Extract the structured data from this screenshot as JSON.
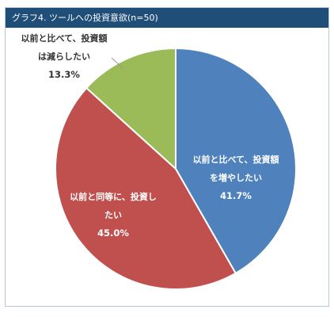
{
  "chart_data": {
    "type": "pie",
    "title": "グラフ4. ツールへの投資意欲(n=50)",
    "start_angle_deg": 0,
    "direction": "clockwise",
    "slices": [
      {
        "label_lines": [
          "以前と比べて、投資額",
          "を増やしたい"
        ],
        "value": 41.7,
        "value_label": "41.7%",
        "color": "#4f81bd",
        "label_color": "#ffffff"
      },
      {
        "label_lines": [
          "以前と同等に、投資し",
          "たい"
        ],
        "value": 45.0,
        "value_label": "45.0%",
        "color": "#c0504d",
        "label_color": "#ffffff"
      },
      {
        "label_lines": [
          "以前と比べて、投資額",
          "は減らしたい"
        ],
        "value": 13.3,
        "value_label": "13.3%",
        "color": "#9bbb59",
        "label_color": "#333333"
      }
    ]
  }
}
